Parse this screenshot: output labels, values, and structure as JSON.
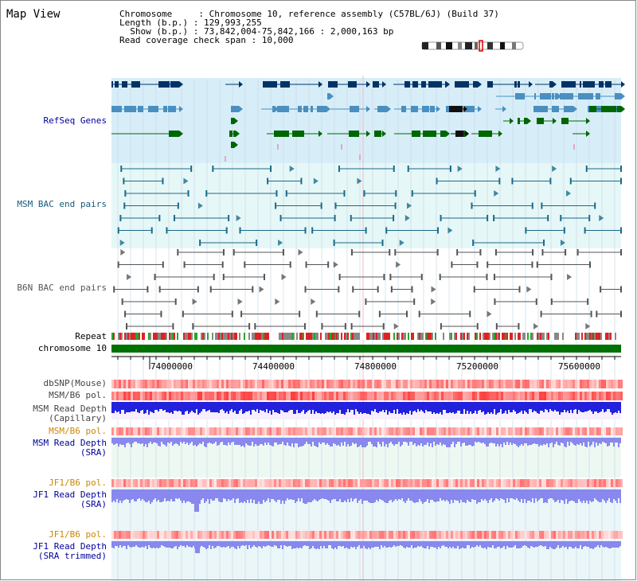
{
  "title": "Map View",
  "info": {
    "line1": "Chromosome     : Chromosome 10, reference assembly (C57BL/6J) (Build 37)",
    "line2": "Length (b.p.) : 129,993,255",
    "line3": "  Show (b.p.) : 73,842,004-75,842,166 : 2,000,163 bp",
    "line4": "Read coverage check span : 10,000"
  },
  "tracks": {
    "refseq": "RefSeq Genes",
    "msm_bac": "MSM BAC end pairs",
    "b6n_bac": "B6N BAC end pairs",
    "repeat": "Repeat",
    "chromosome": "chromosome 10",
    "dbsnp": "dbSNP(Mouse)",
    "msm_pol1": "MSM/B6 pol.",
    "msm_depth_cap_1": "MSM Read Depth",
    "msm_depth_cap_2": "(Capillary)",
    "msm_pol2": "MSM/B6 pol.",
    "msm_depth_sra_1": "MSM Read Depth",
    "msm_depth_sra_2": "(SRA)",
    "jf1_pol1": "JF1/B6 pol.",
    "jf1_depth_1": "JF1 Read Depth",
    "jf1_depth_2": "(SRA)",
    "jf1_pol2": "JF1/B6 pol.",
    "jf1_depth_tr_1": "JF1 Read Depth",
    "jf1_depth_tr_2": "(SRA trimmed)"
  },
  "axis": {
    "ticks": [
      "74000000",
      "74400000",
      "74800000",
      "75200000",
      "75600000"
    ]
  },
  "colors": {
    "refseq_dark": "#003366",
    "refseq_mid": "#4a8fbf",
    "refseq_green": "#006600",
    "bac_msm": "#1a6a8a",
    "bac_b6n": "#555555",
    "chromosome_bar": "#007000",
    "depth_blue": "#2222dd",
    "depth_light": "#8888ee",
    "label_blue": "#000099",
    "label_orange": "#cc8800"
  }
}
